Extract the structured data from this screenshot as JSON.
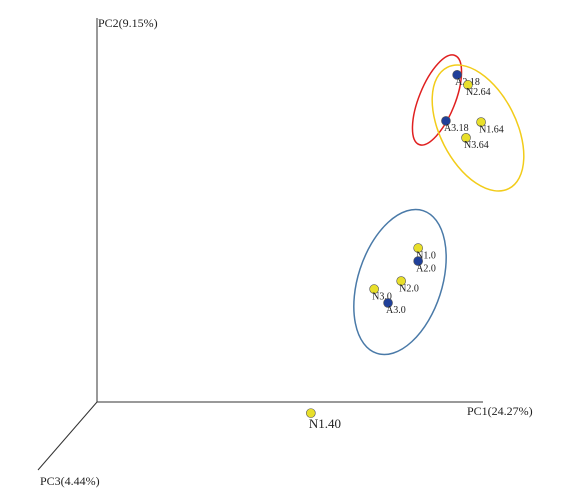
{
  "chart_data": {
    "type": "scatter",
    "x_label": "PC1(24.27%)",
    "y_label": "PC2(9.15%)",
    "z_label": "PC3(4.44%)",
    "xlim": [
      0,
      100
    ],
    "ylim": [
      0,
      100
    ],
    "points": [
      {
        "label": "A2.18",
        "x": 93.3,
        "y": 85.2,
        "color": "#1f3f99"
      },
      {
        "label": "N2.64",
        "x": 96.1,
        "y": 82.6,
        "color": "#e8df2a"
      },
      {
        "label": "A3.18",
        "x": 90.4,
        "y": 73.2,
        "color": "#1f3f99"
      },
      {
        "label": "N1.64",
        "x": 99.5,
        "y": 72.9,
        "color": "#e8df2a"
      },
      {
        "label": "N3.64",
        "x": 95.6,
        "y": 68.8,
        "color": "#e8df2a"
      },
      {
        "label": "N1.0",
        "x": 83.2,
        "y": 40.1,
        "color": "#e8df2a"
      },
      {
        "label": "A2.0",
        "x": 83.2,
        "y": 36.7,
        "color": "#1f3f99"
      },
      {
        "label": "N2.0",
        "x": 78.8,
        "y": 31.5,
        "color": "#e8df2a"
      },
      {
        "label": "N3.0",
        "x": 71.8,
        "y": 29.4,
        "color": "#e8df2a"
      },
      {
        "label": "A3.0",
        "x": 75.4,
        "y": 25.8,
        "color": "#1f3f99"
      },
      {
        "label": "N1.40",
        "x": 55.4,
        "y": -2.9,
        "color": "#e8df2a"
      }
    ]
  }
}
